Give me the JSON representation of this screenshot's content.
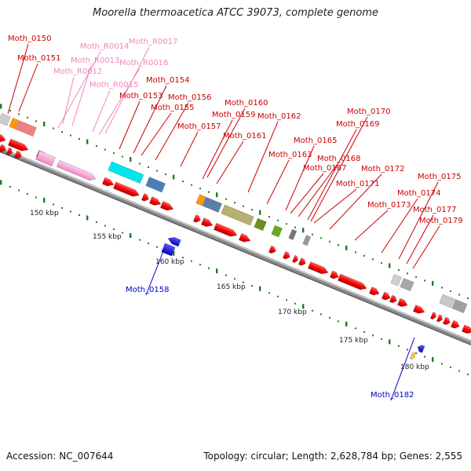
{
  "title": "Moorella thermoacetica ATCC 39073, complete genome",
  "footer": {
    "accession": "Accession: NC_007644",
    "topology": "Topology: circular; Length: 2,628,784 bp; Genes: 2,555"
  },
  "scale_labels": [
    "150 kbp",
    "155 kbp",
    "160 kbp",
    "165 kbp",
    "170 kbp",
    "175 kbp",
    "180 kbp"
  ],
  "gene_labels": [
    "Moth_0150",
    "Moth_0151",
    "Moth_R0014",
    "Moth_R0017",
    "Moth_R0013",
    "Moth_R0016",
    "Moth_R0012",
    "Moth_R0015",
    "Moth_0154",
    "Moth_0153",
    "Moth_0156",
    "Moth_0155",
    "Moth_0160",
    "Moth_0159",
    "Moth_0157",
    "Moth_0162",
    "Moth_0161",
    "Moth_0170",
    "Moth_0169",
    "Moth_0165",
    "Moth_0163",
    "Moth_0168",
    "Moth_0167",
    "Moth_0172",
    "Moth_0171",
    "Moth_0175",
    "Moth_0174",
    "Moth_0173",
    "Moth_0177",
    "Moth_0179",
    "Moth_0158",
    "Moth_0182"
  ],
  "colors": {
    "forward_gene": "#ff0000",
    "reverse_gene": "#0000ee",
    "trna": "#ff99cc",
    "backbone": "#8a8a8a",
    "tick": "#1f7a1f"
  }
}
